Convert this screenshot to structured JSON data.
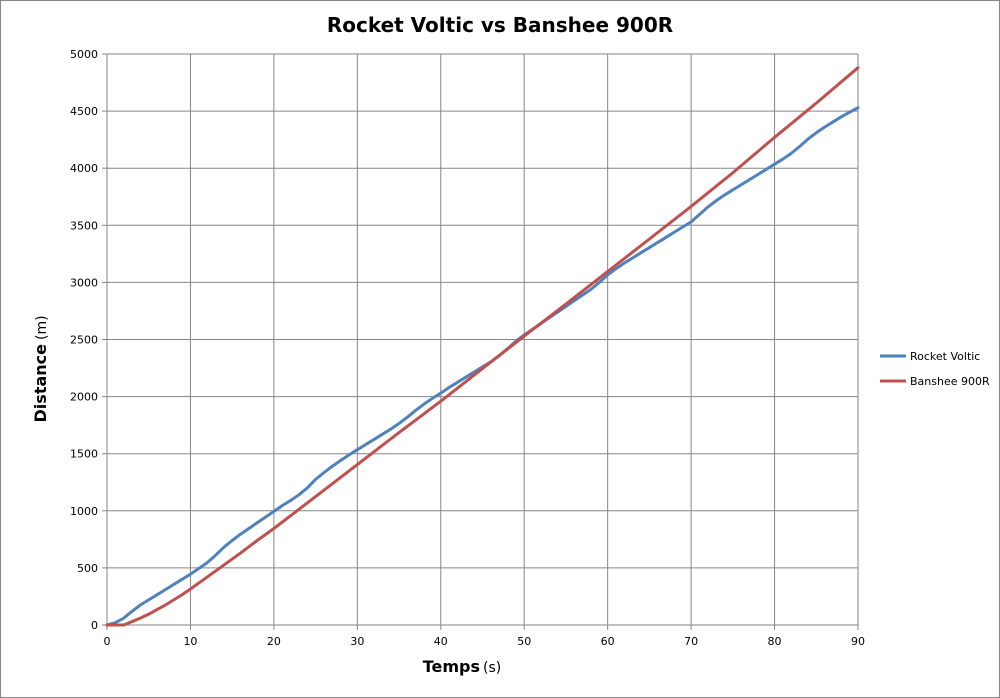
{
  "chart_data": {
    "type": "line",
    "title": "Rocket Voltic vs Banshee 900R",
    "xlabel": "Temps",
    "xlabel_unit": "(s)",
    "ylabel": "Distance",
    "ylabel_unit": "(m)",
    "xlim": [
      0,
      90
    ],
    "ylim": [
      0,
      5000
    ],
    "x_ticks": [
      0,
      10,
      20,
      30,
      40,
      50,
      60,
      70,
      80,
      90
    ],
    "y_ticks": [
      0,
      500,
      1000,
      1500,
      2000,
      2500,
      3000,
      3500,
      4000,
      4500,
      5000
    ],
    "grid": true,
    "legend_position": "right",
    "series": [
      {
        "name": "Rocket Voltic",
        "color": "#4F81BD",
        "points": [
          [
            0,
            0
          ],
          [
            1,
            20
          ],
          [
            2,
            60
          ],
          [
            3,
            120
          ],
          [
            4,
            175
          ],
          [
            5,
            220
          ],
          [
            6,
            265
          ],
          [
            7,
            310
          ],
          [
            8,
            355
          ],
          [
            9,
            400
          ],
          [
            10,
            445
          ],
          [
            11,
            495
          ],
          [
            12,
            545
          ],
          [
            13,
            610
          ],
          [
            14,
            680
          ],
          [
            15,
            740
          ],
          [
            16,
            795
          ],
          [
            17,
            845
          ],
          [
            18,
            895
          ],
          [
            19,
            945
          ],
          [
            20,
            995
          ],
          [
            21,
            1045
          ],
          [
            22,
            1090
          ],
          [
            23,
            1140
          ],
          [
            24,
            1200
          ],
          [
            25,
            1275
          ],
          [
            26,
            1335
          ],
          [
            27,
            1390
          ],
          [
            28,
            1440
          ],
          [
            29,
            1490
          ],
          [
            30,
            1535
          ],
          [
            31,
            1580
          ],
          [
            32,
            1625
          ],
          [
            33,
            1670
          ],
          [
            34,
            1715
          ],
          [
            35,
            1765
          ],
          [
            36,
            1820
          ],
          [
            37,
            1880
          ],
          [
            38,
            1935
          ],
          [
            39,
            1985
          ],
          [
            40,
            2030
          ],
          [
            41,
            2080
          ],
          [
            42,
            2125
          ],
          [
            43,
            2170
          ],
          [
            44,
            2215
          ],
          [
            45,
            2260
          ],
          [
            46,
            2305
          ],
          [
            47,
            2360
          ],
          [
            48,
            2420
          ],
          [
            49,
            2485
          ],
          [
            50,
            2540
          ],
          [
            51,
            2590
          ],
          [
            52,
            2640
          ],
          [
            53,
            2690
          ],
          [
            54,
            2740
          ],
          [
            55,
            2790
          ],
          [
            56,
            2840
          ],
          [
            57,
            2890
          ],
          [
            58,
            2940
          ],
          [
            59,
            3000
          ],
          [
            60,
            3065
          ],
          [
            61,
            3120
          ],
          [
            62,
            3170
          ],
          [
            63,
            3215
          ],
          [
            64,
            3260
          ],
          [
            65,
            3305
          ],
          [
            66,
            3350
          ],
          [
            67,
            3395
          ],
          [
            68,
            3440
          ],
          [
            69,
            3485
          ],
          [
            70,
            3530
          ],
          [
            71,
            3595
          ],
          [
            72,
            3660
          ],
          [
            73,
            3715
          ],
          [
            74,
            3765
          ],
          [
            75,
            3810
          ],
          [
            76,
            3855
          ],
          [
            77,
            3900
          ],
          [
            78,
            3945
          ],
          [
            79,
            3990
          ],
          [
            80,
            4035
          ],
          [
            81,
            4080
          ],
          [
            82,
            4130
          ],
          [
            83,
            4190
          ],
          [
            84,
            4255
          ],
          [
            85,
            4310
          ],
          [
            86,
            4360
          ],
          [
            87,
            4405
          ],
          [
            88,
            4450
          ],
          [
            89,
            4490
          ],
          [
            90,
            4530
          ]
        ]
      },
      {
        "name": "Banshee 900R",
        "color": "#C0504D",
        "points": [
          [
            0,
            0
          ],
          [
            2,
            0
          ],
          [
            3,
            30
          ],
          [
            4,
            60
          ],
          [
            5,
            95
          ],
          [
            6,
            135
          ],
          [
            7,
            175
          ],
          [
            8,
            220
          ],
          [
            9,
            265
          ],
          [
            10,
            315
          ],
          [
            12,
            420
          ],
          [
            14,
            525
          ],
          [
            16,
            630
          ],
          [
            18,
            740
          ],
          [
            20,
            845
          ],
          [
            25,
            1125
          ],
          [
            30,
            1405
          ],
          [
            35,
            1685
          ],
          [
            40,
            1960
          ],
          [
            45,
            2245
          ],
          [
            50,
            2530
          ],
          [
            55,
            2810
          ],
          [
            60,
            3095
          ],
          [
            65,
            3380
          ],
          [
            70,
            3665
          ],
          [
            75,
            3960
          ],
          [
            80,
            4270
          ],
          [
            85,
            4570
          ],
          [
            90,
            4880
          ]
        ]
      }
    ]
  }
}
